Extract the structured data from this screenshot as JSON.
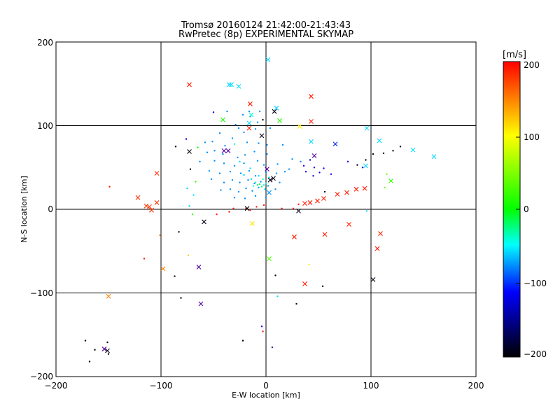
{
  "chart_data": {
    "type": "scatter",
    "title": "Tromsø 20160124 21:42:00-21:43:43",
    "subtitle": "RwPretec (8p) EXPERIMENTAL SKYMAP",
    "xlabel": "E-W location [km]",
    "ylabel": "N-S location [km]",
    "xlim": [
      -200,
      200
    ],
    "ylim": [
      -200,
      200
    ],
    "xticks": [
      "−200",
      "−100",
      "0",
      "100",
      "200"
    ],
    "yticks": [
      "−200",
      "−100",
      "0",
      "100",
      "200"
    ],
    "grid": true,
    "colorbar": {
      "unit": "[m/s]",
      "range": [
        -200,
        200
      ],
      "ticks": [
        "200",
        "100",
        "0",
        "−100",
        "−200"
      ],
      "colors": [
        "#ff0000",
        "#ffff00",
        "#00ff00",
        "#00ffff",
        "#0000ff",
        "#000000"
      ]
    },
    "markers_cross": [
      [
        2,
        179,
        -60
      ],
      [
        -35,
        149,
        -60
      ],
      [
        -33,
        149,
        -60
      ],
      [
        -26,
        147,
        -60
      ],
      [
        -73,
        149,
        190
      ],
      [
        43,
        135,
        190
      ],
      [
        -15,
        126,
        190
      ],
      [
        8,
        117,
        -195
      ],
      [
        10,
        121,
        -60
      ],
      [
        -14,
        113,
        -40
      ],
      [
        -41,
        107,
        10
      ],
      [
        13,
        106,
        10
      ],
      [
        -16,
        103,
        -60
      ],
      [
        -4,
        88,
        -195
      ],
      [
        43,
        105,
        190
      ],
      [
        32,
        99,
        105
      ],
      [
        96,
        97,
        -60
      ],
      [
        108,
        82,
        -60
      ],
      [
        43,
        81,
        -60
      ],
      [
        66,
        78,
        -110
      ],
      [
        140,
        71,
        -60
      ],
      [
        160,
        63,
        -60
      ],
      [
        -73,
        69,
        -195
      ],
      [
        -40,
        70,
        -160
      ],
      [
        -36,
        70,
        -160
      ],
      [
        46,
        64,
        -160
      ],
      [
        95,
        52,
        -60
      ],
      [
        -104,
        43,
        180
      ],
      [
        1,
        48,
        -160
      ],
      [
        4,
        35,
        -195
      ],
      [
        7,
        37,
        -195
      ],
      [
        119,
        34,
        20
      ],
      [
        -122,
        14,
        180
      ],
      [
        -114,
        4,
        180
      ],
      [
        -111,
        3,
        180
      ],
      [
        -109,
        -1,
        180
      ],
      [
        -104,
        8,
        180
      ],
      [
        -16,
        97,
        190
      ],
      [
        37,
        7,
        190
      ],
      [
        42,
        8,
        190
      ],
      [
        49,
        10,
        190
      ],
      [
        55,
        13,
        190
      ],
      [
        68,
        18,
        190
      ],
      [
        77,
        20,
        190
      ],
      [
        86,
        24,
        190
      ],
      [
        94,
        25,
        190
      ],
      [
        -13,
        -17,
        110
      ],
      [
        -59,
        -15,
        -195
      ],
      [
        31,
        -2,
        -195
      ],
      [
        27,
        -33,
        190
      ],
      [
        56,
        -30,
        190
      ],
      [
        79,
        -18,
        190
      ],
      [
        109,
        -29,
        190
      ],
      [
        106,
        -47,
        190
      ],
      [
        3,
        -59,
        30
      ],
      [
        -64,
        -69,
        -160
      ],
      [
        -98,
        -71,
        150
      ],
      [
        37,
        -89,
        190
      ],
      [
        102,
        -84,
        -195
      ],
      [
        -150,
        -104,
        150
      ],
      [
        -62,
        -113,
        -160
      ],
      [
        -154,
        -167,
        -160
      ],
      [
        -151,
        -169,
        -195
      ],
      [
        3,
        20,
        -80
      ],
      [
        -18,
        1,
        -195
      ]
    ],
    "markers_dot": [
      [
        -50,
        116,
        -130
      ],
      [
        -37,
        117,
        -80
      ],
      [
        -16,
        117,
        -80
      ],
      [
        -15,
        111,
        -80
      ],
      [
        -22,
        113,
        -80
      ],
      [
        -6,
        117,
        -80
      ],
      [
        -3,
        107,
        -195
      ],
      [
        -29,
        101,
        -90
      ],
      [
        -44,
        91,
        -80
      ],
      [
        -32,
        85,
        -80
      ],
      [
        -21,
        92,
        -80
      ],
      [
        -26,
        97,
        -80
      ],
      [
        -8,
        104,
        -80
      ],
      [
        -10,
        96,
        -80
      ],
      [
        4,
        97,
        -80
      ],
      [
        -58,
        80,
        -80
      ],
      [
        -51,
        81,
        -80
      ],
      [
        -39,
        76,
        -80
      ],
      [
        -30,
        78,
        -40
      ],
      [
        -18,
        80,
        -80
      ],
      [
        -7,
        79,
        -80
      ],
      [
        1,
        77,
        -80
      ],
      [
        -65,
        74,
        0
      ],
      [
        -56,
        68,
        -80
      ],
      [
        -49,
        70,
        -80
      ],
      [
        -41,
        66,
        -80
      ],
      [
        -27,
        62,
        -80
      ],
      [
        -20,
        65,
        -80
      ],
      [
        -11,
        69,
        -80
      ],
      [
        1,
        66,
        -80
      ],
      [
        -63,
        57,
        -80
      ],
      [
        -49,
        58,
        -80
      ],
      [
        -40,
        55,
        -80
      ],
      [
        -30,
        52,
        -80
      ],
      [
        -21,
        55,
        -80
      ],
      [
        -8,
        58,
        -80
      ],
      [
        -2,
        53,
        -80
      ],
      [
        11,
        54,
        -80
      ],
      [
        -54,
        46,
        -80
      ],
      [
        -44,
        43,
        -80
      ],
      [
        -34,
        45,
        -80
      ],
      [
        -24,
        43,
        -80
      ],
      [
        -16,
        46,
        -80
      ],
      [
        -10,
        40,
        -80
      ],
      [
        0,
        44,
        -80
      ],
      [
        10,
        43,
        -80
      ],
      [
        18,
        45,
        -80
      ],
      [
        -52,
        36,
        -80
      ],
      [
        -40,
        32,
        -80
      ],
      [
        -32,
        35,
        -80
      ],
      [
        -25,
        32,
        -80
      ],
      [
        -17,
        35,
        -80
      ],
      [
        -11,
        31,
        -80
      ],
      [
        -5,
        33,
        -80
      ],
      [
        2,
        28,
        -80
      ],
      [
        13,
        32,
        -80
      ],
      [
        -43,
        23,
        -80
      ],
      [
        -34,
        24,
        -80
      ],
      [
        -26,
        21,
        -80
      ],
      [
        -19,
        25,
        -80
      ],
      [
        -13,
        22,
        -80
      ],
      [
        -7,
        26,
        -80
      ],
      [
        -1,
        24,
        -60
      ],
      [
        9,
        24,
        -80
      ],
      [
        -30,
        14,
        -80
      ],
      [
        -20,
        13,
        -80
      ],
      [
        -10,
        16,
        -80
      ],
      [
        0,
        14,
        -80
      ],
      [
        -7,
        40,
        -60
      ],
      [
        -3,
        36,
        -40
      ],
      [
        0,
        31,
        -40
      ],
      [
        -12,
        28,
        -40
      ],
      [
        -8,
        29,
        -20
      ],
      [
        -6,
        30,
        -20
      ],
      [
        -4,
        27,
        -20
      ],
      [
        -10,
        32,
        -40
      ],
      [
        -2,
        29,
        -40
      ],
      [
        -14,
        36,
        -60
      ],
      [
        -21,
        41,
        -60
      ],
      [
        3,
        38,
        -60
      ],
      [
        -15,
        49,
        -60
      ],
      [
        -25,
        57,
        -60
      ],
      [
        22,
        48,
        -80
      ],
      [
        25,
        60,
        -80
      ],
      [
        16,
        77,
        -80
      ],
      [
        33,
        57,
        -80
      ],
      [
        42,
        59,
        -130
      ],
      [
        36,
        52,
        -130
      ],
      [
        46,
        50,
        -130
      ],
      [
        51,
        44,
        -130
      ],
      [
        38,
        45,
        -130
      ],
      [
        55,
        49,
        -130
      ],
      [
        62,
        42,
        -130
      ],
      [
        45,
        40,
        -130
      ],
      [
        78,
        57,
        -130
      ],
      [
        92,
        50,
        -130
      ],
      [
        -76,
        84,
        -130
      ],
      [
        -86,
        75,
        -195
      ],
      [
        -72,
        48,
        -195
      ],
      [
        -67,
        33,
        20
      ],
      [
        -75,
        25,
        -60
      ],
      [
        -69,
        17,
        -60
      ],
      [
        -73,
        4,
        -60
      ],
      [
        -70,
        -6,
        20
      ],
      [
        -47,
        -6,
        190
      ],
      [
        -35,
        -3,
        190
      ],
      [
        -31,
        1,
        190
      ],
      [
        -19,
        1,
        190
      ],
      [
        -15,
        -1,
        190
      ],
      [
        -9,
        3,
        190
      ],
      [
        -2,
        5,
        190
      ],
      [
        15,
        1,
        190
      ],
      [
        26,
        1,
        190
      ],
      [
        31,
        6,
        190
      ],
      [
        56,
        21,
        -195
      ],
      [
        87,
        53,
        -195
      ],
      [
        95,
        59,
        -195
      ],
      [
        102,
        66,
        -195
      ],
      [
        112,
        67,
        -195
      ],
      [
        121,
        70,
        -195
      ],
      [
        128,
        75,
        -195
      ],
      [
        115,
        42,
        40
      ],
      [
        113,
        26,
        40
      ],
      [
        96,
        -2,
        -60
      ],
      [
        -83,
        -27,
        -195
      ],
      [
        -101,
        -31,
        150
      ],
      [
        -74,
        -55,
        120
      ],
      [
        -87,
        -80,
        -195
      ],
      [
        -81,
        -106,
        -195
      ],
      [
        -116,
        -59,
        190
      ],
      [
        -149,
        27,
        190
      ],
      [
        -163,
        -168,
        -195
      ],
      [
        -172,
        -157,
        -195
      ],
      [
        -151,
        -159,
        -195
      ],
      [
        -168,
        -182,
        -195
      ],
      [
        -150,
        -173,
        -195
      ],
      [
        -22,
        -157,
        -195
      ],
      [
        -4,
        -140,
        -130
      ],
      [
        -3,
        -146,
        190
      ],
      [
        6,
        -165,
        -160
      ],
      [
        9,
        -79,
        -195
      ],
      [
        11,
        -104,
        -60
      ],
      [
        29,
        -113,
        -195
      ],
      [
        41,
        -66,
        110
      ],
      [
        54,
        -92,
        -195
      ]
    ]
  }
}
